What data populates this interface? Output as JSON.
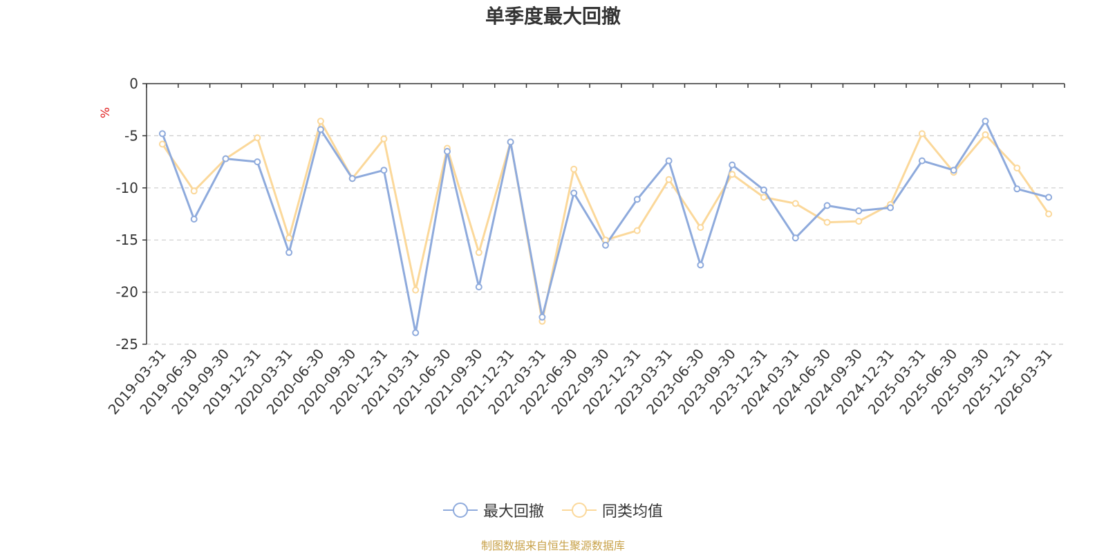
{
  "chart_data": {
    "type": "line",
    "title": "单季度最大回撤",
    "ylabel": "%",
    "xlabel": "",
    "ylim": [
      -25,
      0
    ],
    "yticks": [
      0,
      -5,
      -10,
      -15,
      -20,
      -25
    ],
    "grid": true,
    "legend_position": "bottom",
    "categories": [
      "2019-03-31",
      "2019-06-30",
      "2019-09-30",
      "2019-12-31",
      "2020-03-31",
      "2020-06-30",
      "2020-09-30",
      "2020-12-31",
      "2021-03-31",
      "2021-06-30",
      "2021-09-30",
      "2021-12-31",
      "2022-03-31",
      "2022-06-30",
      "2022-09-30",
      "2022-12-31",
      "2023-03-31",
      "2023-06-30",
      "2023-09-30",
      "2023-12-31",
      "2024-03-31",
      "2024-06-30",
      "2024-09-30",
      "2024-12-31",
      "2025-03-31",
      "2025-06-30",
      "2025-09-30",
      "2025-12-31",
      "2026-03-31"
    ],
    "series": [
      {
        "name": "最大回撤",
        "color": "#8eaadc",
        "values": [
          -4.8,
          -13.0,
          -7.2,
          -7.5,
          -16.2,
          -4.4,
          -9.1,
          -8.3,
          -23.9,
          -6.5,
          -19.5,
          -5.6,
          -22.4,
          -10.5,
          -15.5,
          -11.1,
          -7.4,
          -17.4,
          -7.8,
          -10.2,
          -14.8,
          -11.7,
          -12.2,
          -11.9,
          -7.4,
          -8.3,
          -3.6,
          -10.1,
          -10.9
        ]
      },
      {
        "name": "同类均值",
        "color": "#fbd89a",
        "values": [
          -5.8,
          -10.3,
          -7.2,
          -5.2,
          -14.8,
          -3.6,
          -9.1,
          -5.3,
          -19.8,
          -6.2,
          -16.2,
          -5.6,
          -22.8,
          -8.2,
          -15.0,
          -14.1,
          -9.2,
          -13.8,
          -8.7,
          -10.9,
          -11.5,
          -13.3,
          -13.2,
          -11.6,
          -4.8,
          -8.5,
          -4.9,
          -8.1,
          -12.5
        ]
      }
    ]
  },
  "source_note": "制图数据来自恒生聚源数据库"
}
